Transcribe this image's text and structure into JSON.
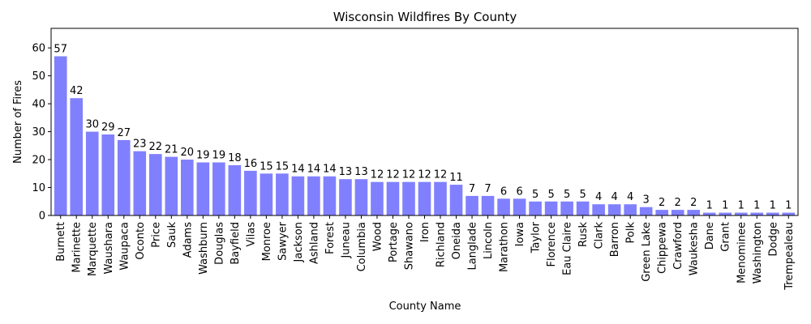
{
  "chart_data": {
    "type": "bar",
    "title": "Wisconsin Wildfires By County",
    "xlabel": "County Name",
    "ylabel": "Number of Fires",
    "ylim": [
      0,
      67
    ],
    "yticks": [
      0,
      10,
      20,
      30,
      40,
      50,
      60
    ],
    "bar_color": "#8080ff",
    "grid": false,
    "categories": [
      "Burnett",
      "Marinette",
      "Marquette",
      "Waushara",
      "Waupaca",
      "Oconto",
      "Price",
      "Sauk",
      "Adams",
      "Washburn",
      "Douglas",
      "Bayfield",
      "Vilas",
      "Monroe",
      "Sawyer",
      "Jackson",
      "Ashland",
      "Forest",
      "Juneau",
      "Columbia",
      "Wood",
      "Portage",
      "Shawano",
      "Iron",
      "Richland",
      "Oneida",
      "Langlade",
      "Lincoln",
      "Marathon",
      "Iowa",
      "Taylor",
      "Florence",
      "Eau Claire",
      "Rusk",
      "Clark",
      "Barron",
      "Polk",
      "Green Lake",
      "Chippewa",
      "Crawford",
      "Waukesha",
      "Dane",
      "Grant",
      "Menominee",
      "Washington",
      "Dodge",
      "Trempealeau"
    ],
    "values": [
      57,
      42,
      30,
      29,
      27,
      23,
      22,
      21,
      20,
      19,
      19,
      18,
      16,
      15,
      15,
      14,
      14,
      14,
      13,
      13,
      12,
      12,
      12,
      12,
      12,
      11,
      7,
      7,
      6,
      6,
      5,
      5,
      5,
      5,
      4,
      4,
      4,
      3,
      2,
      2,
      2,
      1,
      1,
      1,
      1,
      1,
      1
    ]
  }
}
